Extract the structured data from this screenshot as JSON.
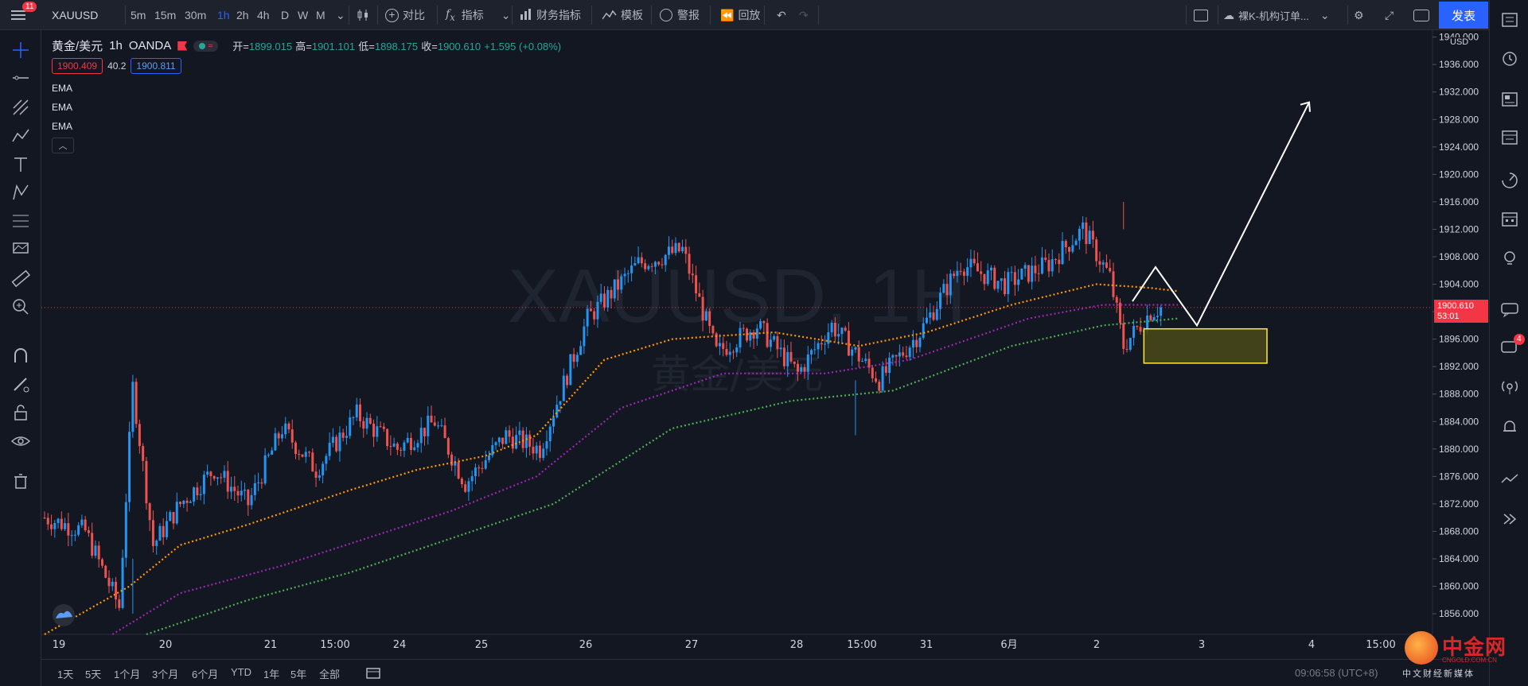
{
  "topbar": {
    "menu_badge": "11",
    "symbol": "XAUUSD",
    "intervals": [
      "5m",
      "15m",
      "30m",
      "1h",
      "2h",
      "4h",
      "D",
      "W",
      "M"
    ],
    "active_interval": "1h",
    "compare_label": "对比",
    "indicators_label": "指标",
    "financials_label": "财务指标",
    "templates_label": "模板",
    "alert_label": "警报",
    "replay_label": "回放",
    "layout_name": "裸K-机构订单...",
    "publish_label": "发表"
  },
  "legend": {
    "symbol_name": "黄金/美元",
    "interval": "1h",
    "exchange": "OANDA",
    "open_label": "开=",
    "open": "1899.015",
    "high_label": "高=",
    "high": "1901.101",
    "low_label": "低=",
    "low": "1898.175",
    "close_label": "收=",
    "close": "1900.610",
    "change": "+1.595 (+0.08%)",
    "bid": "1900.409",
    "spread": "40.2",
    "ask": "1900.811",
    "indicators": [
      "EMA",
      "EMA",
      "EMA"
    ],
    "collapse_icon": "chevron-up-icon"
  },
  "price_axis": {
    "currency": "USD",
    "last_price": "1900.610",
    "countdown": "53:01"
  },
  "watermark": {
    "symbol": "XAUUSD, 1H",
    "name": "黄金/美元"
  },
  "bottombar": {
    "ranges": [
      "1天",
      "5天",
      "1个月",
      "3个月",
      "6个月",
      "YTD",
      "1年",
      "5年",
      "全部"
    ],
    "clock": "09:06:58 (UTC+8)"
  },
  "brand": {
    "name": "中金网",
    "url": "CNGOLD.COM.CN",
    "slogan": "中文财经新媒体"
  },
  "right_toolbar": {
    "chat_badge": "4"
  },
  "colors": {
    "up": "#2196f3",
    "down": "#ef5350",
    "ema_fast": "#ff9800",
    "ema_mid": "#9c27b0",
    "ema_slow": "#4caf50",
    "zone_fill": "#4a4a17",
    "zone_border": "#ffeb3b",
    "projection": "#ffffff",
    "last_price_bg": "#f23645"
  },
  "chart_data": {
    "type": "candlestick",
    "title": "XAUUSD, 1H",
    "ylim": [
      1853,
      1941
    ],
    "yticks": [
      1856,
      1860,
      1864,
      1868,
      1872,
      1876,
      1880,
      1884,
      1888,
      1892,
      1896,
      1900,
      1904,
      1908,
      1912,
      1916,
      1920,
      1924,
      1928,
      1932,
      1936,
      1940
    ],
    "x_tick_labels": [
      "19",
      "20",
      "21",
      "15:00",
      "24",
      "25",
      "26",
      "27",
      "28",
      "15:00",
      "31",
      "6月",
      "2",
      "3",
      "4",
      "15:00"
    ],
    "candle_close_path": [
      {
        "bar": 0,
        "price": 1870
      },
      {
        "bar": 12,
        "price": 1868
      },
      {
        "bar": 22,
        "price": 1857
      },
      {
        "bar": 26,
        "price": 1889
      },
      {
        "bar": 32,
        "price": 1866
      },
      {
        "bar": 40,
        "price": 1872
      },
      {
        "bar": 50,
        "price": 1877
      },
      {
        "bar": 60,
        "price": 1872
      },
      {
        "bar": 70,
        "price": 1883
      },
      {
        "bar": 80,
        "price": 1877
      },
      {
        "bar": 92,
        "price": 1885
      },
      {
        "bar": 104,
        "price": 1880
      },
      {
        "bar": 115,
        "price": 1884
      },
      {
        "bar": 124,
        "price": 1875
      },
      {
        "bar": 136,
        "price": 1882
      },
      {
        "bar": 146,
        "price": 1880
      },
      {
        "bar": 160,
        "price": 1899
      },
      {
        "bar": 175,
        "price": 1907
      },
      {
        "bar": 188,
        "price": 1909
      },
      {
        "bar": 198,
        "price": 1894
      },
      {
        "bar": 210,
        "price": 1898
      },
      {
        "bar": 222,
        "price": 1891
      },
      {
        "bar": 232,
        "price": 1898
      },
      {
        "bar": 246,
        "price": 1890
      },
      {
        "bar": 258,
        "price": 1897
      },
      {
        "bar": 270,
        "price": 1907
      },
      {
        "bar": 283,
        "price": 1904
      },
      {
        "bar": 296,
        "price": 1907
      },
      {
        "bar": 306,
        "price": 1912
      },
      {
        "bar": 314,
        "price": 1905
      },
      {
        "bar": 318,
        "price": 1895
      },
      {
        "bar": 326,
        "price": 1900
      },
      {
        "bar": 329,
        "price": 1900.6
      }
    ],
    "extremes": {
      "low": 1856,
      "high": 1916,
      "high_date": "6月 1",
      "spike_low": 1882,
      "spike_low_date": "29"
    },
    "ema_fast": [
      {
        "bar": 0,
        "price": 1853
      },
      {
        "bar": 25,
        "price": 1860
      },
      {
        "bar": 40,
        "price": 1866
      },
      {
        "bar": 60,
        "price": 1869
      },
      {
        "bar": 90,
        "price": 1874
      },
      {
        "bar": 110,
        "price": 1877
      },
      {
        "bar": 130,
        "price": 1879
      },
      {
        "bar": 145,
        "price": 1882
      },
      {
        "bar": 165,
        "price": 1893
      },
      {
        "bar": 185,
        "price": 1896
      },
      {
        "bar": 215,
        "price": 1897
      },
      {
        "bar": 240,
        "price": 1895
      },
      {
        "bar": 260,
        "price": 1897
      },
      {
        "bar": 285,
        "price": 1901
      },
      {
        "bar": 310,
        "price": 1904
      },
      {
        "bar": 325,
        "price": 1903.5
      },
      {
        "bar": 334,
        "price": 1903
      }
    ],
    "ema_mid": [
      {
        "bar": 20,
        "price": 1853
      },
      {
        "bar": 40,
        "price": 1859
      },
      {
        "bar": 70,
        "price": 1863
      },
      {
        "bar": 95,
        "price": 1867
      },
      {
        "bar": 120,
        "price": 1871
      },
      {
        "bar": 145,
        "price": 1876
      },
      {
        "bar": 170,
        "price": 1886
      },
      {
        "bar": 200,
        "price": 1891
      },
      {
        "bar": 230,
        "price": 1891
      },
      {
        "bar": 255,
        "price": 1893
      },
      {
        "bar": 290,
        "price": 1899
      },
      {
        "bar": 312,
        "price": 1901
      },
      {
        "bar": 334,
        "price": 1901
      }
    ],
    "ema_slow": [
      {
        "bar": 30,
        "price": 1853
      },
      {
        "bar": 60,
        "price": 1858
      },
      {
        "bar": 90,
        "price": 1862
      },
      {
        "bar": 120,
        "price": 1867
      },
      {
        "bar": 150,
        "price": 1872
      },
      {
        "bar": 185,
        "price": 1883
      },
      {
        "bar": 220,
        "price": 1887
      },
      {
        "bar": 250,
        "price": 1888.5
      },
      {
        "bar": 285,
        "price": 1895
      },
      {
        "bar": 312,
        "price": 1898
      },
      {
        "bar": 334,
        "price": 1899
      }
    ],
    "zone": {
      "price_top": 1897.5,
      "price_bottom": 1892.5,
      "label": ""
    },
    "projection_path": [
      {
        "date": "2",
        "price": 1901.5
      },
      {
        "date": "2",
        "price": 1906.5
      },
      {
        "date": "2-3",
        "price": 1898
      },
      {
        "date": "4",
        "price": 1930.5
      }
    ],
    "last_price": 1900.61
  }
}
